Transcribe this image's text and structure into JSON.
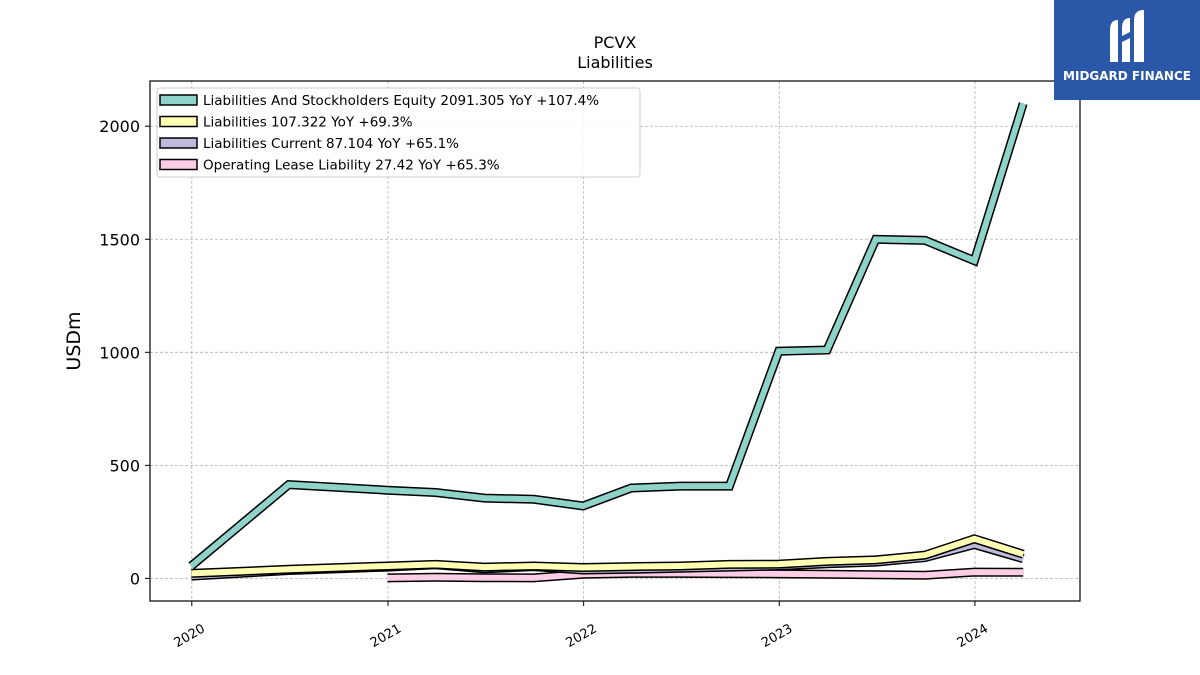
{
  "brand": {
    "name": "MIDGARD FINANCE",
    "logo_icon": "midgard-m-logo-icon",
    "color": "#2a57a8"
  },
  "chart_data": {
    "type": "line",
    "title": "PCVX",
    "subtitle": "Liabilities",
    "ylabel": "USDm",
    "xlabel": "",
    "xlim": [
      "2019-10-15",
      "2024-07-15"
    ],
    "ylim": [
      -100,
      2200
    ],
    "yticks": [
      0,
      500,
      1000,
      1500,
      2000
    ],
    "xticks": [
      {
        "date": "2020-01-01",
        "label": "2020"
      },
      {
        "date": "2021-01-01",
        "label": "2021"
      },
      {
        "date": "2022-01-01",
        "label": "2022"
      },
      {
        "date": "2023-01-01",
        "label": "2023"
      },
      {
        "date": "2024-01-01",
        "label": "2024"
      }
    ],
    "grid": true,
    "legend_position": "top-left",
    "series": [
      {
        "name": "Liabilities And Stockholders Equity",
        "legend": "Liabilities And Stockholders Equity  2091.305 YoY +107.4%",
        "color": "#8dd3c7",
        "points": [
          [
            "2019-12-31",
            55
          ],
          [
            "2020-06-30",
            415
          ],
          [
            "2020-12-31",
            390
          ],
          [
            "2021-03-31",
            380
          ],
          [
            "2021-06-30",
            355
          ],
          [
            "2021-09-30",
            350
          ],
          [
            "2021-12-31",
            320
          ],
          [
            "2022-03-31",
            400
          ],
          [
            "2022-06-30",
            408
          ],
          [
            "2022-09-30",
            408
          ],
          [
            "2022-12-31",
            1005
          ],
          [
            "2023-03-31",
            1010
          ],
          [
            "2023-06-30",
            1500
          ],
          [
            "2023-09-30",
            1495
          ],
          [
            "2023-12-31",
            1405
          ],
          [
            "2024-03-31",
            2100
          ]
        ]
      },
      {
        "name": "Liabilities",
        "legend": "Liabilities  107.322 YoY +69.3%",
        "color": "#ffffb3",
        "points": [
          [
            "2019-12-31",
            22
          ],
          [
            "2020-06-30",
            40
          ],
          [
            "2020-12-31",
            55
          ],
          [
            "2021-03-31",
            62
          ],
          [
            "2021-06-30",
            50
          ],
          [
            "2021-09-30",
            55
          ],
          [
            "2021-12-31",
            48
          ],
          [
            "2022-03-31",
            52
          ],
          [
            "2022-06-30",
            55
          ],
          [
            "2022-09-30",
            62
          ],
          [
            "2022-12-31",
            63
          ],
          [
            "2023-03-31",
            75
          ],
          [
            "2023-06-30",
            82
          ],
          [
            "2023-09-30",
            103
          ],
          [
            "2023-12-31",
            175
          ],
          [
            "2024-03-31",
            107
          ]
        ]
      },
      {
        "name": "Liabilities Current",
        "legend": "Liabilities Current  87.104 YoY +65.1%",
        "color": "#bebada",
        "points": [
          [
            "2019-12-31",
            10
          ],
          [
            "2020-06-30",
            35
          ],
          [
            "2020-12-31",
            50
          ],
          [
            "2021-03-31",
            60
          ],
          [
            "2021-06-30",
            42
          ],
          [
            "2021-09-30",
            52
          ],
          [
            "2021-12-31",
            37
          ],
          [
            "2022-03-31",
            40
          ],
          [
            "2022-06-30",
            45
          ],
          [
            "2022-09-30",
            50
          ],
          [
            "2022-12-31",
            55
          ],
          [
            "2023-03-31",
            65
          ],
          [
            "2023-06-30",
            72
          ],
          [
            "2023-09-30",
            92
          ],
          [
            "2023-12-31",
            150
          ],
          [
            "2024-03-31",
            87
          ]
        ]
      },
      {
        "name": "Operating Lease Liability",
        "legend": "Operating Lease Liability  27.42 YoY +65.3%",
        "color": "#fccde5",
        "points": [
          [
            "2020-12-31",
            2
          ],
          [
            "2021-03-31",
            5
          ],
          [
            "2021-06-30",
            3
          ],
          [
            "2021-09-30",
            2
          ],
          [
            "2021-12-31",
            18
          ],
          [
            "2022-03-31",
            22
          ],
          [
            "2022-06-30",
            22
          ],
          [
            "2022-09-30",
            21
          ],
          [
            "2022-12-31",
            20
          ],
          [
            "2023-03-31",
            18
          ],
          [
            "2023-06-30",
            16
          ],
          [
            "2023-09-30",
            14
          ],
          [
            "2023-12-31",
            28
          ],
          [
            "2024-03-31",
            27
          ]
        ]
      }
    ]
  }
}
